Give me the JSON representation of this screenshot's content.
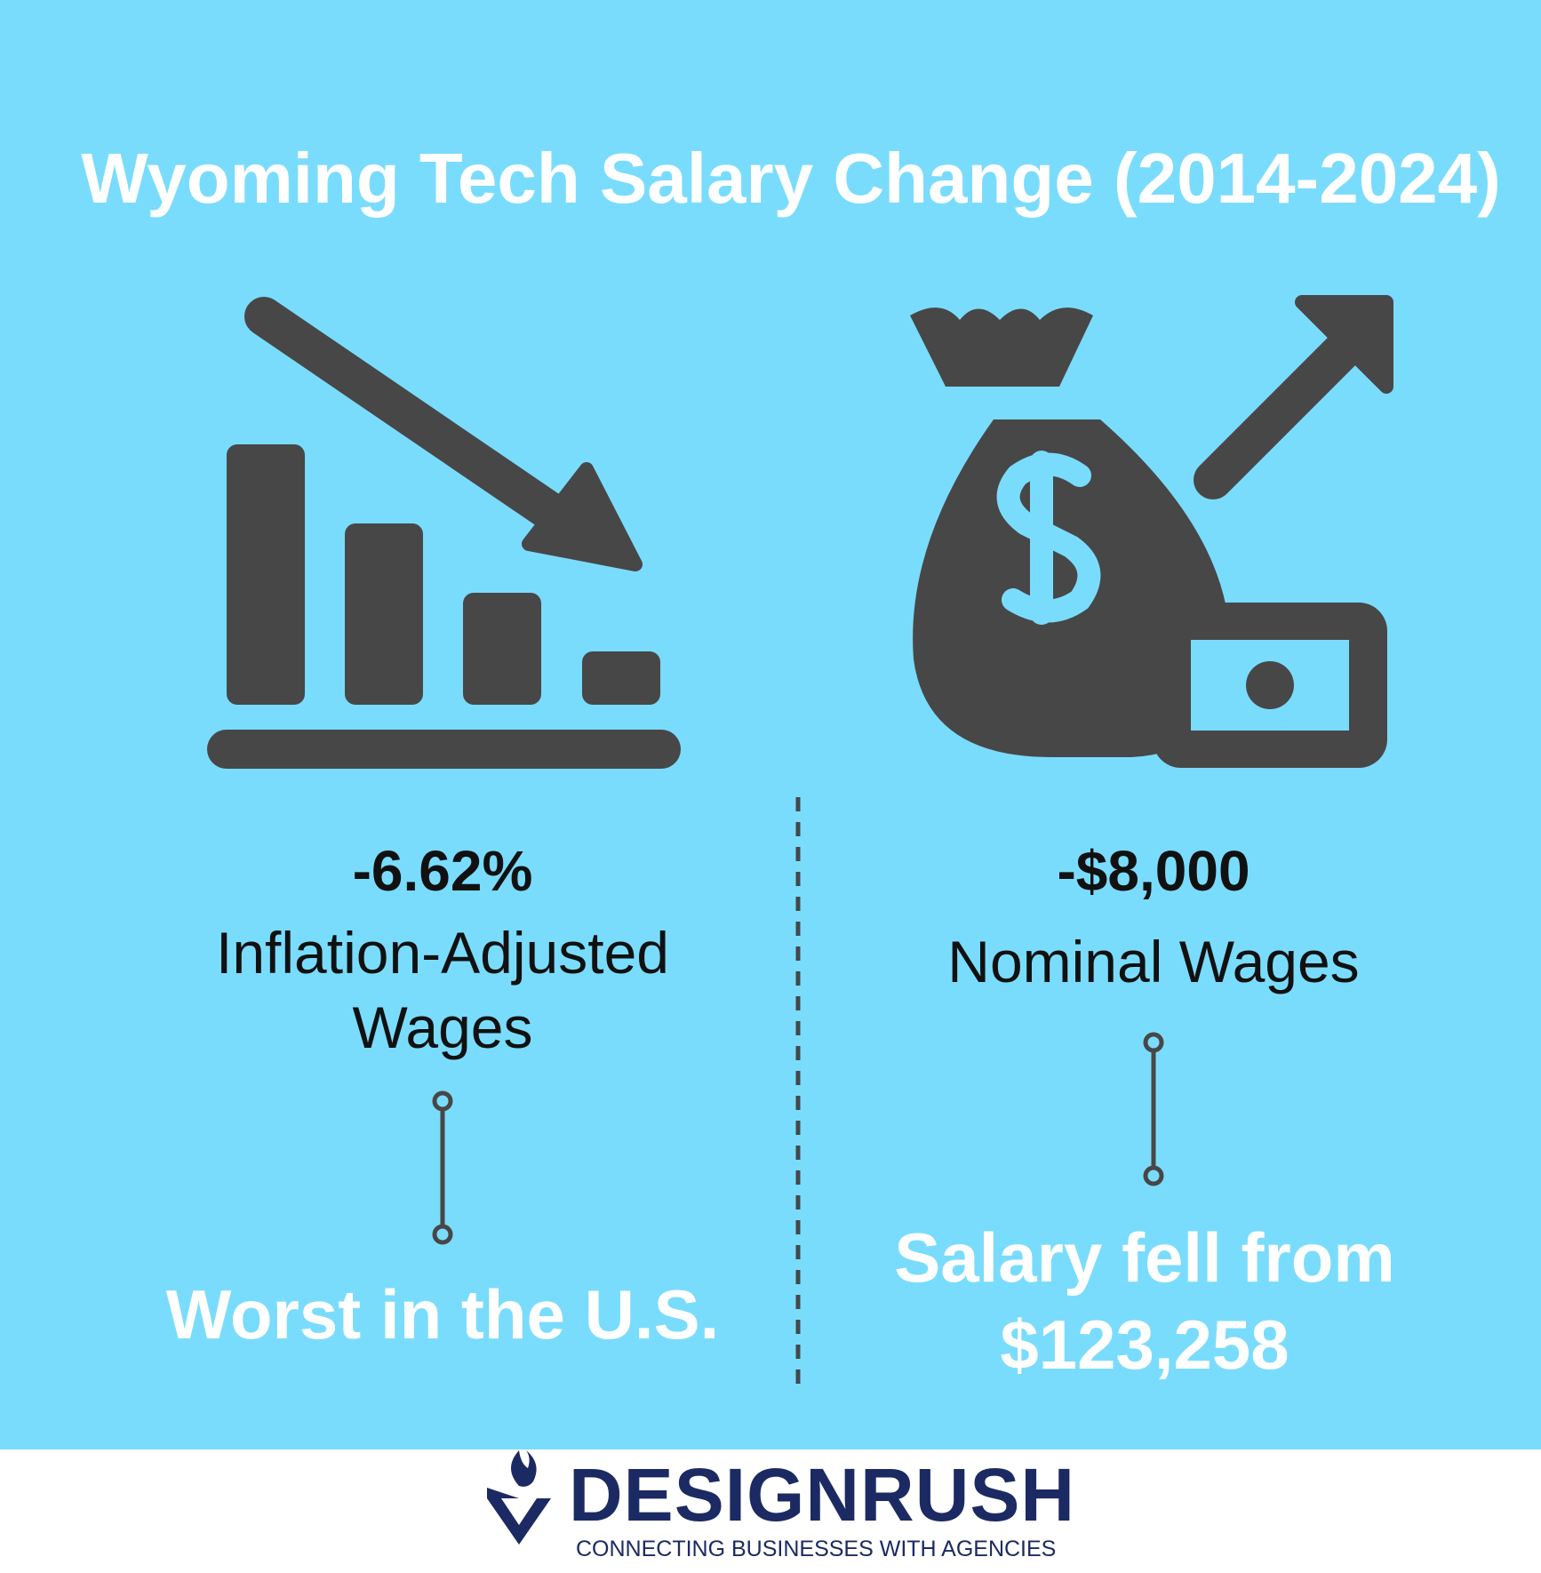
{
  "title": "Wyoming Tech Salary Change (2014-2024)",
  "left": {
    "value": "-6.62%",
    "label": "Inflation-Adjusted Wages",
    "note": "Worst in the U.S."
  },
  "right": {
    "value": "-$8,000",
    "label": "Nominal Wages",
    "note": "Salary fell from $123,258"
  },
  "footer": {
    "brand": "DESIGNRUSH",
    "tagline": "CONNECTING BUSINESSES WITH AGENCIES"
  }
}
